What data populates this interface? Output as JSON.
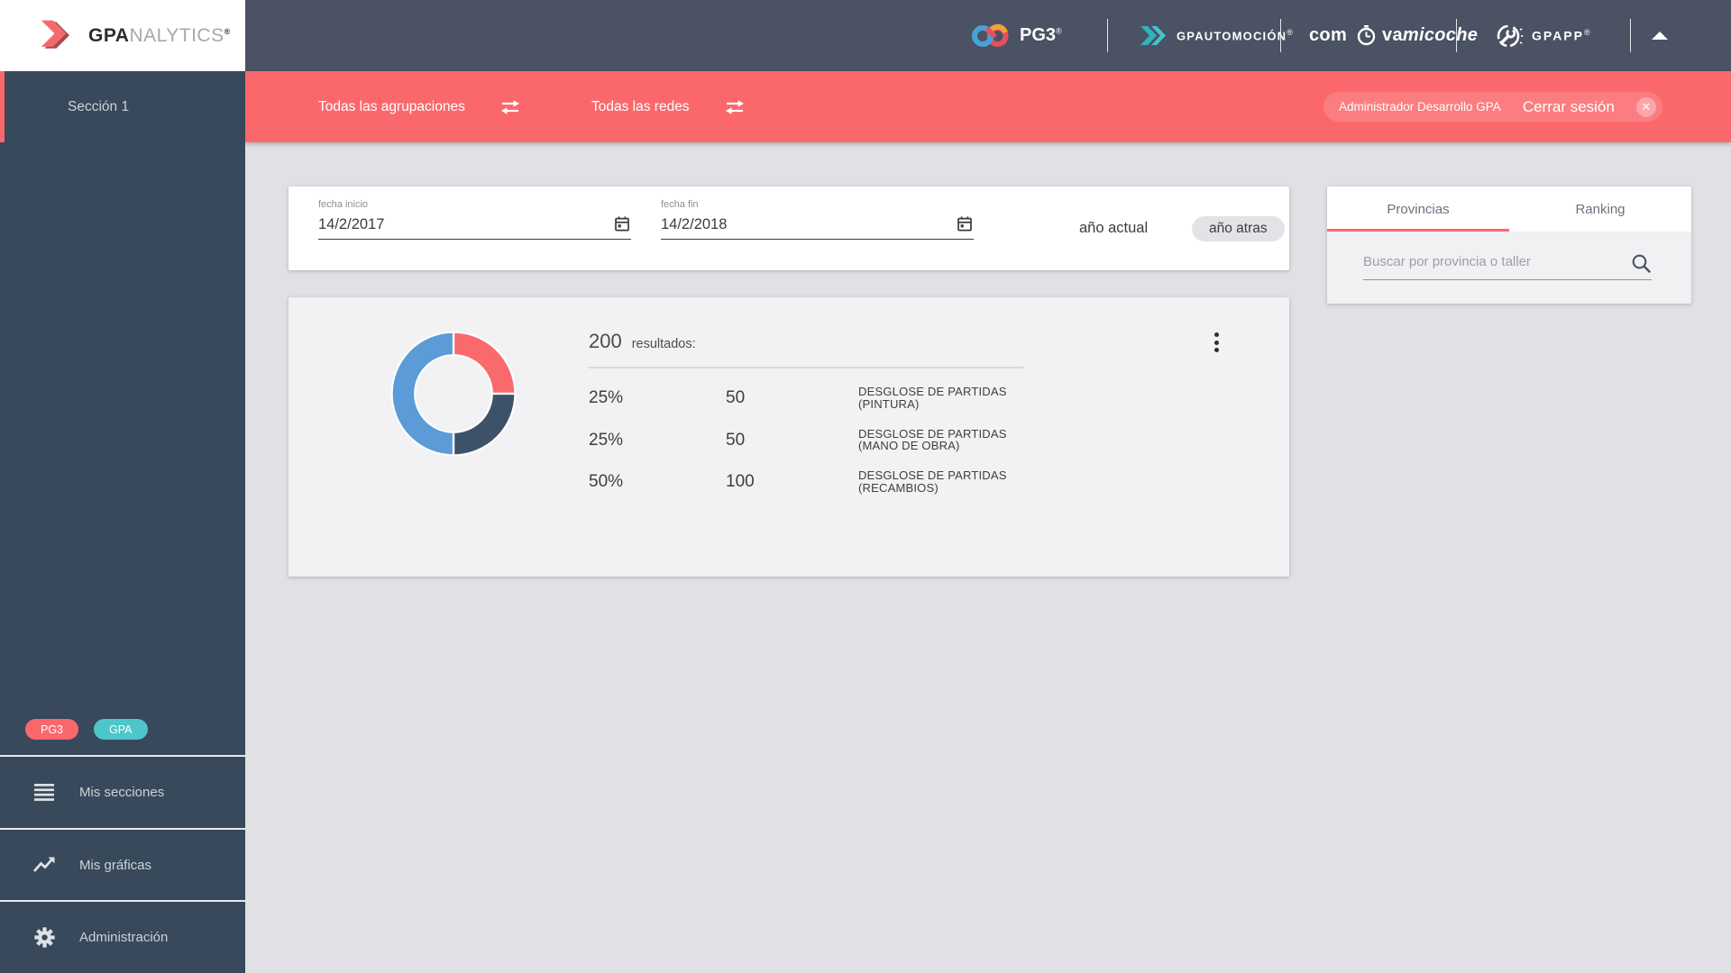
{
  "brand": {
    "bold": "GPA",
    "rest": "NALYTICS",
    "reg": "®"
  },
  "sidebar": {
    "section_label": "Sección 1",
    "badges": [
      {
        "label": "PG3",
        "color": "#fb686c"
      },
      {
        "label": "GPA",
        "color": "#4dc5cb"
      }
    ],
    "items": [
      {
        "label": "Mis secciones",
        "icon": "list-icon"
      },
      {
        "label": "Mis gráficas",
        "icon": "trending-icon"
      },
      {
        "label": "Administración",
        "icon": "gear-icon"
      }
    ]
  },
  "topbar": {
    "brands": [
      {
        "name": "PG3",
        "reg": "®",
        "icon": "infinity-icon"
      },
      {
        "name": "GPAUTOMOCIÓN",
        "reg": "®",
        "icon": "double-chevron-icon"
      },
      {
        "prefix": "com",
        "mid": "va",
        "italic": "micoche",
        "icon": "clock-icon"
      },
      {
        "name": "GPAPP",
        "reg": "®",
        "icon": "wrench-circle-icon"
      }
    ]
  },
  "redbar": {
    "groupings_label": "Todas las agrupaciones",
    "networks_label": "Todas las redes",
    "user_label": "Administrador Desarrollo GPA",
    "logout_label": "Cerrar sesión",
    "close_glyph": "✕",
    "bar_color": "#fb686c"
  },
  "filters": {
    "start": {
      "label": "fecha inicio",
      "value": "14/2/2017"
    },
    "end": {
      "label": "fecha fin",
      "value": "14/2/2018"
    },
    "current_year_label": "año actual",
    "previous_year_label": "año atras"
  },
  "results": {
    "count": "200",
    "count_suffix": "resultados:",
    "rows": [
      {
        "percent": "25%",
        "value": "50",
        "label": "DESGLOSE DE PARTIDAS (PINTURA)"
      },
      {
        "percent": "25%",
        "value": "50",
        "label": "DESGLOSE DE PARTIDAS (MANO DE OBRA)"
      },
      {
        "percent": "50%",
        "value": "100",
        "label": "DESGLOSE DE PARTIDAS (RECAMBIOS)"
      }
    ]
  },
  "side_panel": {
    "tabs": [
      {
        "label": "Provincias",
        "active": true
      },
      {
        "label": "Ranking",
        "active": false
      }
    ],
    "search_placeholder": "Buscar por provincia o taller"
  },
  "chart_data": {
    "type": "pie",
    "donut": true,
    "title": "200 resultados",
    "total": 200,
    "categories": [
      "DESGLOSE DE PARTIDAS (PINTURA)",
      "DESGLOSE DE PARTIDAS (MANO DE OBRA)",
      "DESGLOSE DE PARTIDAS (RECAMBIOS)"
    ],
    "values": [
      50,
      50,
      100
    ],
    "percents": [
      25,
      25,
      50
    ],
    "colors": [
      "#f96a6d",
      "#3d5168",
      "#5b9bd8"
    ],
    "start_angle_deg": -90,
    "legend_position": "none"
  }
}
